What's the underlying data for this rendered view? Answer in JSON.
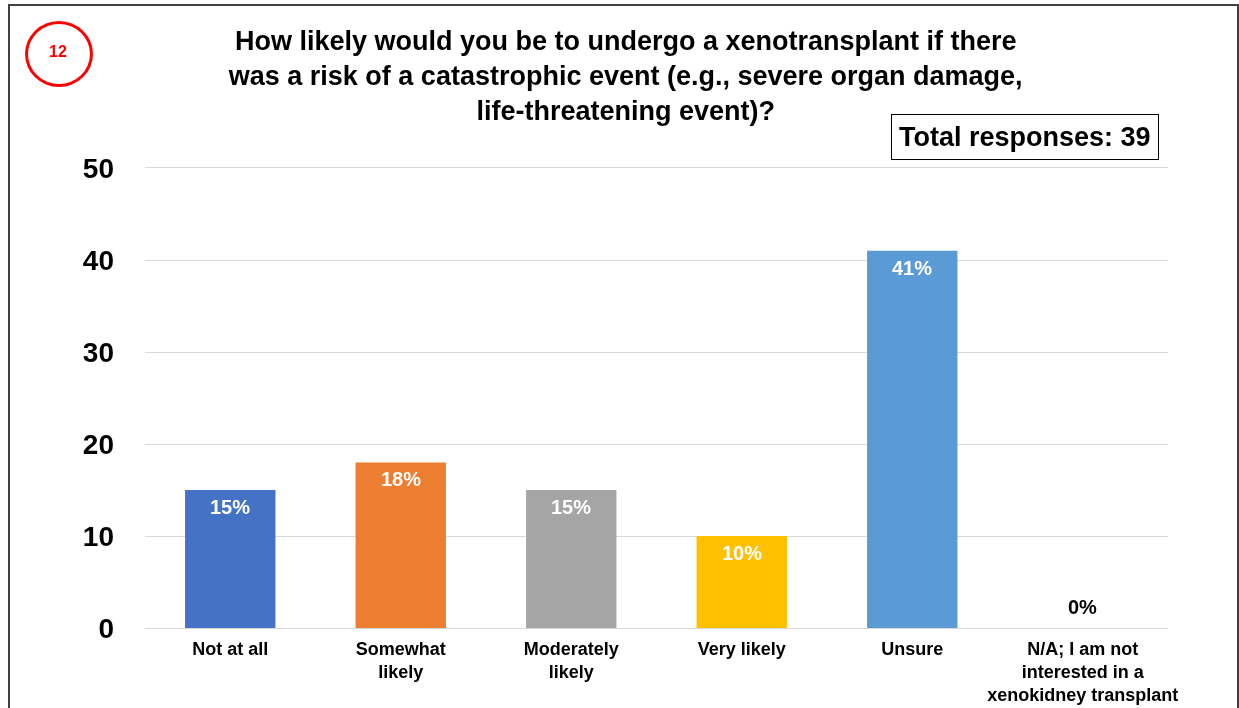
{
  "chart_data": {
    "type": "bar",
    "title": "How likely would you be to undergo a xenotransplant if there was a risk of a catastrophic event (e.g., severe organ damage, life-threatening event)?",
    "categories": [
      "Not at all",
      "Somewhat likely",
      "Moderately likely",
      "Very likely",
      "Unsure",
      "N/A; I am not interested in a xenokidney transplant"
    ],
    "values": [
      15,
      18,
      15,
      10,
      41,
      0
    ],
    "colors": [
      "#4472c4",
      "#ed7d31",
      "#a5a5a5",
      "#ffc000",
      "#5b9bd5",
      "#70ad47"
    ],
    "value_labels": [
      "15%",
      "18%",
      "15%",
      "10%",
      "41%",
      "0%"
    ],
    "ylim": [
      0,
      50
    ],
    "yticks": [
      0,
      10,
      20,
      30,
      40,
      50
    ],
    "grid": "y",
    "annotations": [
      "12",
      "Total responses: 39"
    ]
  }
}
